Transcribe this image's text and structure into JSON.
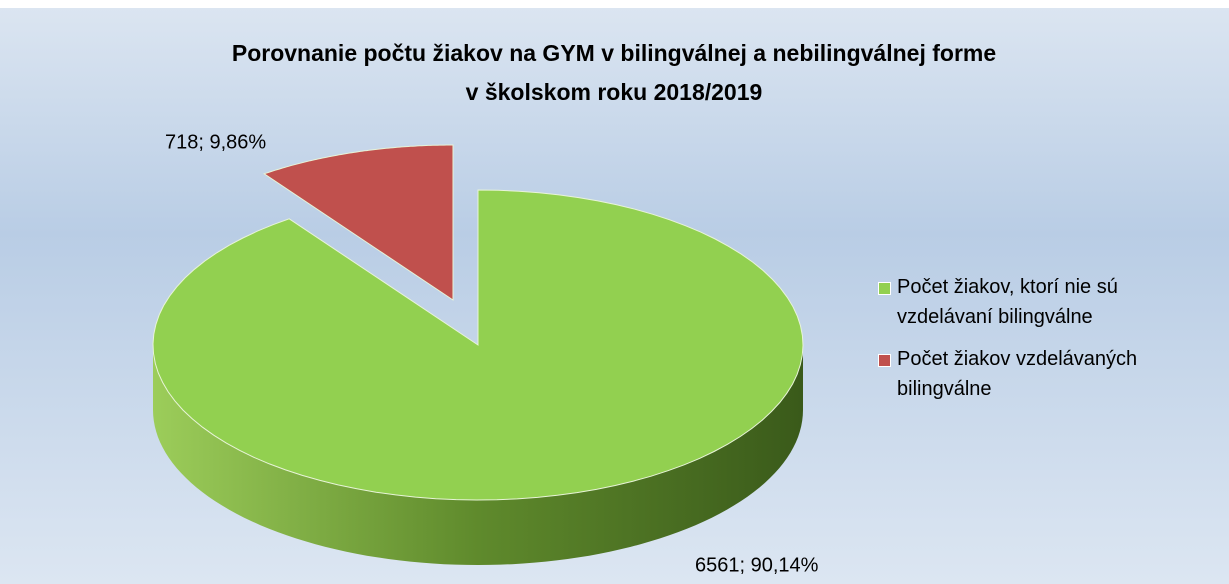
{
  "chart_data": {
    "type": "pie",
    "title": [
      "Porovnanie počtu žiakov na GYM v bilingválnej a nebilingválnej forme",
      "v školskom roku 2018/2019"
    ],
    "categories": [
      "Počet žiakov, ktorí nie sú vzdelávaní bilingválne",
      "Počet žiakov vzdelávaných bilingválne"
    ],
    "values": [
      6561,
      718
    ],
    "value_labels": [
      "6561; 90,14%",
      "718; 9,86%"
    ],
    "colors": [
      "#92d050",
      "#c0504d"
    ],
    "legend": "right"
  }
}
